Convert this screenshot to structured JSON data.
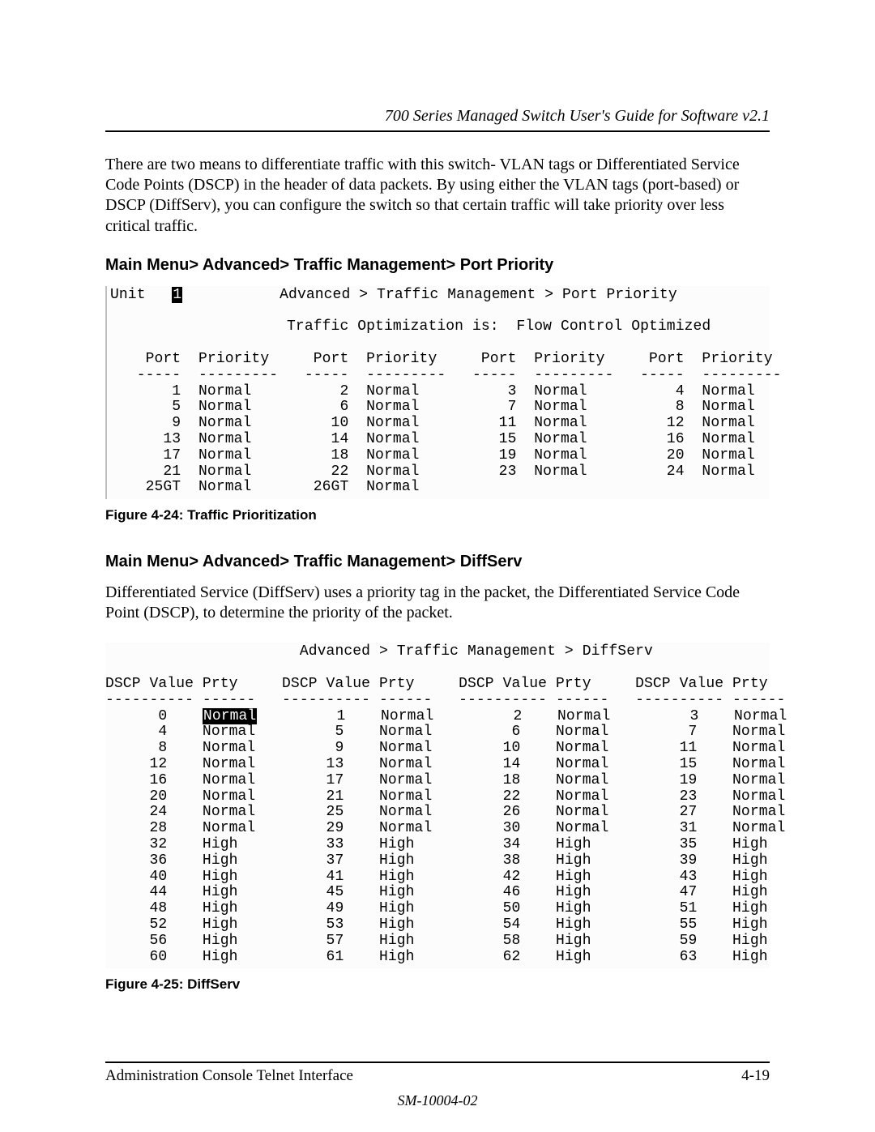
{
  "header": {
    "title": "700 Series Managed Switch User's Guide for Software v2.1"
  },
  "intro": "There are two means to differentiate traffic with this switch- VLAN tags or Differentiated Service Code Points (DSCP) in the header of data packets.  By using either the VLAN tags (port-based) or DSCP (DiffServ), you can configure the switch so that certain traffic will take priority over less critical traffic.",
  "section1": {
    "heading": "Main Menu> Advanced> Traffic Management> Port Priority",
    "terminal": {
      "unit_label": "Unit",
      "unit_val": "1",
      "breadcrumb": "Advanced > Traffic Management > Port Priority",
      "opt_label": "Traffic Optimization is:",
      "opt_val": "Flow Control Optimized",
      "col_port": "Port",
      "col_prio": "Priority",
      "rows": [
        [
          "1",
          "Normal",
          "2",
          "Normal",
          "3",
          "Normal",
          "4",
          "Normal"
        ],
        [
          "5",
          "Normal",
          "6",
          "Normal",
          "7",
          "Normal",
          "8",
          "Normal"
        ],
        [
          "9",
          "Normal",
          "10",
          "Normal",
          "11",
          "Normal",
          "12",
          "Normal"
        ],
        [
          "13",
          "Normal",
          "14",
          "Normal",
          "15",
          "Normal",
          "16",
          "Normal"
        ],
        [
          "17",
          "Normal",
          "18",
          "Normal",
          "19",
          "Normal",
          "20",
          "Normal"
        ],
        [
          "21",
          "Normal",
          "22",
          "Normal",
          "23",
          "Normal",
          "24",
          "Normal"
        ],
        [
          "25GT",
          "Normal",
          "26GT",
          "Normal",
          "",
          "",
          "",
          ""
        ]
      ]
    },
    "caption": "Figure 4-24:  Traffic Prioritization"
  },
  "section2": {
    "heading": "Main Menu> Advanced> Traffic Management> DiffServ",
    "body": "Differentiated Service (DiffServ) uses a priority tag in the packet, the Differentiated Service Code Point (DSCP), to determine the priority of the packet.",
    "terminal": {
      "breadcrumb": "Advanced > Traffic Management > DiffServ",
      "col_dscp": "DSCP Value",
      "col_prty": "Prty",
      "highlight": "Normal",
      "rows": [
        [
          "0",
          "Normal",
          "1",
          "Normal",
          "2",
          "Normal",
          "3",
          "Normal"
        ],
        [
          "4",
          "Normal",
          "5",
          "Normal",
          "6",
          "Normal",
          "7",
          "Normal"
        ],
        [
          "8",
          "Normal",
          "9",
          "Normal",
          "10",
          "Normal",
          "11",
          "Normal"
        ],
        [
          "12",
          "Normal",
          "13",
          "Normal",
          "14",
          "Normal",
          "15",
          "Normal"
        ],
        [
          "16",
          "Normal",
          "17",
          "Normal",
          "18",
          "Normal",
          "19",
          "Normal"
        ],
        [
          "20",
          "Normal",
          "21",
          "Normal",
          "22",
          "Normal",
          "23",
          "Normal"
        ],
        [
          "24",
          "Normal",
          "25",
          "Normal",
          "26",
          "Normal",
          "27",
          "Normal"
        ],
        [
          "28",
          "Normal",
          "29",
          "Normal",
          "30",
          "Normal",
          "31",
          "Normal"
        ],
        [
          "32",
          "High",
          "33",
          "High",
          "34",
          "High",
          "35",
          "High"
        ],
        [
          "36",
          "High",
          "37",
          "High",
          "38",
          "High",
          "39",
          "High"
        ],
        [
          "40",
          "High",
          "41",
          "High",
          "42",
          "High",
          "43",
          "High"
        ],
        [
          "44",
          "High",
          "45",
          "High",
          "46",
          "High",
          "47",
          "High"
        ],
        [
          "48",
          "High",
          "49",
          "High",
          "50",
          "High",
          "51",
          "High"
        ],
        [
          "52",
          "High",
          "53",
          "High",
          "54",
          "High",
          "55",
          "High"
        ],
        [
          "56",
          "High",
          "57",
          "High",
          "58",
          "High",
          "59",
          "High"
        ],
        [
          "60",
          "High",
          "61",
          "High",
          "62",
          "High",
          "63",
          "High"
        ]
      ]
    },
    "caption": "Figure 4-25:  DiffServ"
  },
  "footer": {
    "left": "Administration Console Telnet Interface",
    "right": "4-19",
    "docid": "SM-10004-02"
  }
}
